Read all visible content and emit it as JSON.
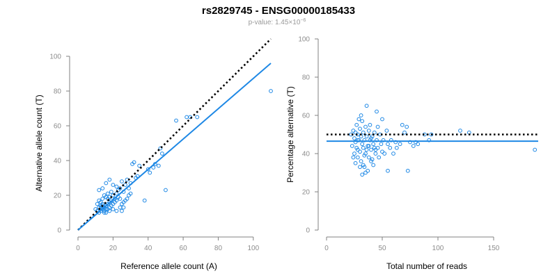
{
  "title": "rs2829745 - ENSG00000185433",
  "subtitle": {
    "prefix": "p-value: 1.45×10",
    "exponent": "−6"
  },
  "chart_data": [
    {
      "type": "scatter",
      "xlabel": "Reference allele count (A)",
      "ylabel": "Alternative allele count (T)",
      "xlim": [
        0,
        110
      ],
      "ylim": [
        0,
        100
      ],
      "xticks": [
        0,
        20,
        40,
        60,
        80,
        100
      ],
      "yticks": [
        0,
        20,
        40,
        60,
        80,
        100
      ],
      "grid": false,
      "point_color": "#1e88e5",
      "lines": [
        {
          "style": "dotted",
          "color": "#000000",
          "x": [
            0,
            110
          ],
          "y": [
            0,
            110
          ]
        },
        {
          "style": "solid",
          "color": "#1e88e5",
          "x": [
            0,
            110
          ],
          "y": [
            0,
            96
          ]
        }
      ],
      "points": [
        [
          10,
          12
        ],
        [
          11,
          11
        ],
        [
          12,
          13
        ],
        [
          12,
          10
        ],
        [
          13,
          14
        ],
        [
          13,
          11
        ],
        [
          14,
          12
        ],
        [
          14,
          15
        ],
        [
          15,
          13
        ],
        [
          15,
          10
        ],
        [
          11,
          15
        ],
        [
          12,
          17
        ],
        [
          13,
          16
        ],
        [
          16,
          14
        ],
        [
          16,
          12
        ],
        [
          17,
          15
        ],
        [
          17,
          18
        ],
        [
          18,
          13
        ],
        [
          18,
          16
        ],
        [
          19,
          17
        ],
        [
          14,
          18
        ],
        [
          15,
          20
        ],
        [
          16,
          19
        ],
        [
          17,
          21
        ],
        [
          18,
          19
        ],
        [
          19,
          22
        ],
        [
          20,
          20
        ],
        [
          21,
          18
        ],
        [
          22,
          21
        ],
        [
          23,
          23
        ],
        [
          12,
          23
        ],
        [
          14,
          24
        ],
        [
          16,
          27
        ],
        [
          18,
          29
        ],
        [
          20,
          26
        ],
        [
          22,
          25
        ],
        [
          24,
          24
        ],
        [
          25,
          28
        ],
        [
          26,
          22
        ],
        [
          27,
          26
        ],
        [
          28,
          29
        ],
        [
          29,
          24
        ],
        [
          30,
          27
        ],
        [
          31,
          38
        ],
        [
          32,
          39
        ],
        [
          33,
          30
        ],
        [
          34,
          31
        ],
        [
          35,
          37
        ],
        [
          38,
          17
        ],
        [
          40,
          35
        ],
        [
          41,
          33
        ],
        [
          43,
          36
        ],
        [
          44,
          38
        ],
        [
          46,
          37
        ],
        [
          47,
          47
        ],
        [
          48,
          44
        ],
        [
          50,
          23
        ],
        [
          56,
          63
        ],
        [
          62,
          65
        ],
        [
          64,
          65
        ],
        [
          68,
          65
        ],
        [
          110,
          80
        ],
        [
          15,
          11
        ],
        [
          16,
          10
        ],
        [
          13,
          13
        ],
        [
          14,
          14
        ],
        [
          17,
          12
        ],
        [
          18,
          11
        ],
        [
          19,
          14
        ],
        [
          20,
          15
        ],
        [
          21,
          16
        ],
        [
          22,
          17
        ],
        [
          23,
          19
        ],
        [
          24,
          18
        ],
        [
          25,
          15
        ],
        [
          26,
          16
        ],
        [
          27,
          17
        ],
        [
          28,
          18
        ],
        [
          29,
          20
        ],
        [
          30,
          21
        ],
        [
          20,
          12
        ],
        [
          22,
          11
        ],
        [
          24,
          13
        ],
        [
          25,
          11
        ],
        [
          26,
          13
        ]
      ]
    },
    {
      "type": "scatter",
      "xlabel": "Total number of reads",
      "ylabel": "Percentage alternative (T)",
      "xlim": [
        0,
        190
      ],
      "ylim": [
        0,
        100
      ],
      "xticks": [
        0,
        50,
        100,
        150
      ],
      "yticks": [
        0,
        20,
        40,
        60,
        80,
        100
      ],
      "grid": false,
      "point_color": "#1e88e5",
      "lines": [
        {
          "style": "dotted",
          "color": "#000000",
          "x": [
            0,
            190
          ],
          "y": [
            50,
            50
          ]
        },
        {
          "style": "solid",
          "color": "#1e88e5",
          "x": [
            0,
            190
          ],
          "y": [
            46.5,
            46.5
          ]
        }
      ],
      "points": [
        [
          22,
          50
        ],
        [
          23,
          44
        ],
        [
          24,
          52
        ],
        [
          25,
          48
        ],
        [
          25,
          40
        ],
        [
          26,
          46
        ],
        [
          27,
          55
        ],
        [
          27,
          43
        ],
        [
          28,
          50
        ],
        [
          28,
          38
        ],
        [
          29,
          47
        ],
        [
          30,
          53
        ],
        [
          30,
          41
        ],
        [
          31,
          49
        ],
        [
          31,
          36
        ],
        [
          32,
          45
        ],
        [
          32,
          57
        ],
        [
          33,
          51
        ],
        [
          33,
          43
        ],
        [
          34,
          47
        ],
        [
          34,
          33
        ],
        [
          35,
          54
        ],
        [
          35,
          40
        ],
        [
          36,
          49
        ],
        [
          36,
          65
        ],
        [
          37,
          44
        ],
        [
          37,
          31
        ],
        [
          38,
          52
        ],
        [
          38,
          38
        ],
        [
          39,
          47
        ],
        [
          39,
          55
        ],
        [
          40,
          42
        ],
        [
          40,
          36
        ],
        [
          41,
          49
        ],
        [
          42,
          45
        ],
        [
          42,
          34
        ],
        [
          43,
          51
        ],
        [
          44,
          40
        ],
        [
          45,
          47
        ],
        [
          45,
          62
        ],
        [
          46,
          43
        ],
        [
          47,
          38
        ],
        [
          48,
          50
        ],
        [
          49,
          45
        ],
        [
          50,
          41
        ],
        [
          50,
          58
        ],
        [
          51,
          47
        ],
        [
          52,
          40
        ],
        [
          54,
          52
        ],
        [
          55,
          45
        ],
        [
          55,
          31
        ],
        [
          57,
          43
        ],
        [
          58,
          47
        ],
        [
          60,
          40
        ],
        [
          62,
          46
        ],
        [
          63,
          43
        ],
        [
          66,
          45
        ],
        [
          68,
          55
        ],
        [
          70,
          51
        ],
        [
          72,
          54
        ],
        [
          73,
          31
        ],
        [
          75,
          46
        ],
        [
          78,
          44
        ],
        [
          80,
          46
        ],
        [
          82,
          45
        ],
        [
          88,
          50
        ],
        [
          92,
          47
        ],
        [
          94,
          50
        ],
        [
          120,
          52
        ],
        [
          128,
          51
        ],
        [
          187,
          42
        ],
        [
          24,
          38
        ],
        [
          26,
          35
        ],
        [
          28,
          42
        ],
        [
          29,
          58
        ],
        [
          31,
          60
        ],
        [
          33,
          34
        ],
        [
          35,
          30
        ],
        [
          36,
          42
        ],
        [
          38,
          44
        ],
        [
          40,
          48
        ],
        [
          41,
          37
        ],
        [
          43,
          43
        ],
        [
          44,
          42
        ],
        [
          46,
          54
        ],
        [
          30,
          33
        ],
        [
          32,
          29
        ],
        [
          34,
          39
        ],
        [
          28,
          47
        ],
        [
          26,
          51
        ]
      ]
    }
  ]
}
